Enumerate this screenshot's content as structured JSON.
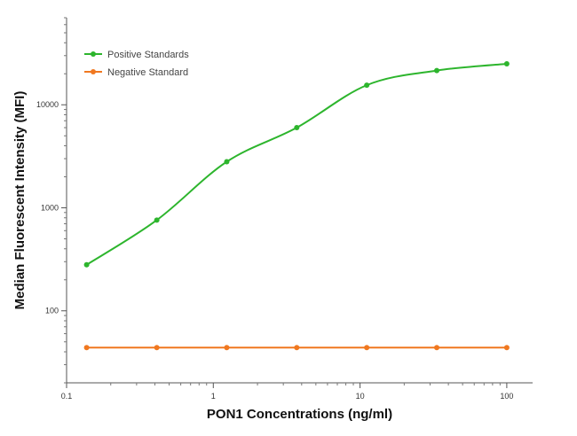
{
  "chart_data": {
    "type": "scatter",
    "xlabel": "PON1 Concentrations (ng/ml)",
    "ylabel": "Median  Fluorescent Intensity  (MFI)",
    "xscale": "log",
    "yscale": "log",
    "xlim": [
      0.1,
      150
    ],
    "ylim": [
      20,
      70000
    ],
    "x_ticks": [
      0.1,
      1,
      10,
      100
    ],
    "x_tick_labels": [
      "0.1",
      "1",
      "10",
      "100"
    ],
    "y_ticks": [
      100,
      1000,
      10000
    ],
    "y_tick_labels": [
      "100",
      "1000",
      "10000"
    ],
    "legend_position": "top-left",
    "series": [
      {
        "name": "Positive Standards",
        "color": "#2db52d",
        "marker": "circle",
        "fit": "sigmoidal curve",
        "x": [
          0.137,
          0.412,
          1.235,
          3.704,
          11.11,
          33.33,
          100
        ],
        "y": [
          280,
          760,
          2800,
          6000,
          15500,
          21500,
          25000
        ]
      },
      {
        "name": "Negative Standard",
        "color": "#f07820",
        "marker": "circle",
        "fit": "line",
        "x": [
          0.137,
          0.412,
          1.235,
          3.704,
          11.11,
          33.33,
          100
        ],
        "y": [
          44,
          44,
          44,
          44,
          44,
          44,
          44
        ]
      }
    ]
  }
}
